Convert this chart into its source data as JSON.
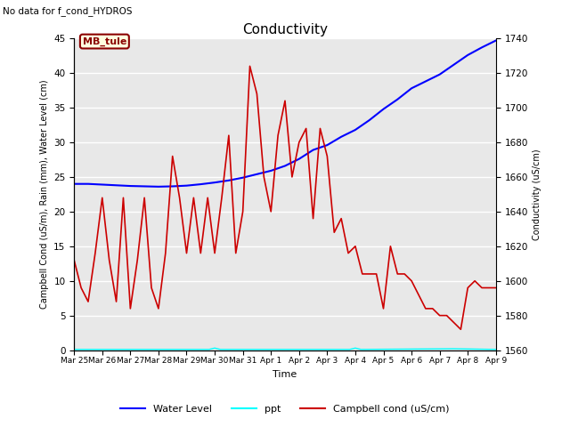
{
  "title": "Conductivity",
  "top_left_text": "No data for f_cond_HYDROS",
  "annotation_box": "MB_tule",
  "xlabel": "Time",
  "ylabel_left": "Campbell Cond (uS/m), Rain (mm), Water Level (cm)",
  "ylabel_right": "Conductivity (uS/cm)",
  "ylim_left": [
    0,
    45
  ],
  "ylim_right": [
    1560,
    1740
  ],
  "plot_bg_color": "#e8e8e8",
  "xtick_labels": [
    "Mar 25",
    "Mar 26",
    "Mar 27",
    "Mar 28",
    "Mar 29",
    "Mar 30",
    "Mar 31",
    "Apr 1",
    "Apr 2",
    "Apr 3",
    "Apr 4",
    "Apr 5",
    "Apr 6",
    "Apr 7",
    "Apr 8",
    "Apr 9"
  ],
  "water_level_color": "#0000ff",
  "ppt_color": "#00ffff",
  "campbell_color": "#cc0000",
  "water_level_x": [
    0,
    0.5,
    1.0,
    1.5,
    2.0,
    2.5,
    3.0,
    3.5,
    4.0,
    4.5,
    5.0,
    5.5,
    6.0,
    6.5,
    7.0,
    7.5,
    8.0,
    8.5,
    9.0,
    9.5,
    10.0,
    10.5,
    11.0,
    11.5,
    12.0,
    12.5,
    13.0,
    13.5,
    14.0,
    14.5,
    15.0
  ],
  "water_level_y": [
    24.0,
    24.0,
    23.9,
    23.8,
    23.7,
    23.65,
    23.6,
    23.65,
    23.75,
    23.95,
    24.2,
    24.5,
    24.9,
    25.4,
    25.9,
    26.6,
    27.6,
    28.9,
    29.6,
    30.8,
    31.8,
    33.2,
    34.8,
    36.2,
    37.8,
    38.8,
    39.8,
    41.2,
    42.6,
    43.7,
    44.7
  ],
  "campbell_x": [
    0,
    0.25,
    0.5,
    0.75,
    1.0,
    1.25,
    1.5,
    1.75,
    2.0,
    2.25,
    2.5,
    2.75,
    3.0,
    3.25,
    3.5,
    3.75,
    4.0,
    4.25,
    4.5,
    4.75,
    5.0,
    5.25,
    5.5,
    5.75,
    6.0,
    6.25,
    6.5,
    6.75,
    7.0,
    7.25,
    7.5,
    7.75,
    8.0,
    8.25,
    8.5,
    8.75,
    9.0,
    9.25,
    9.5,
    9.75,
    10.0,
    10.25,
    10.5,
    10.75,
    11.0,
    11.25,
    11.5,
    11.75,
    12.0,
    12.25,
    12.5,
    12.75,
    13.0,
    13.25,
    13.5,
    13.75,
    14.0,
    14.25,
    14.5,
    14.75,
    15.0
  ],
  "campbell_y": [
    13,
    9,
    7,
    14,
    22,
    13,
    7,
    22,
    6,
    13,
    22,
    9,
    6,
    14,
    28,
    22,
    14,
    22,
    14,
    22,
    14,
    22,
    31,
    14,
    20,
    41,
    37,
    25,
    20,
    31,
    36,
    25,
    30,
    32,
    19,
    32,
    28,
    17,
    19,
    14,
    15,
    11,
    11,
    11,
    6,
    15,
    11,
    11,
    10,
    8,
    6,
    6,
    5,
    5,
    4,
    3,
    9,
    10,
    9,
    9,
    9
  ],
  "ppt_x": [
    0,
    4.8,
    5.0,
    5.2,
    9.8,
    10.0,
    10.2,
    13.5,
    15.0
  ],
  "ppt_y": [
    0.1,
    0.1,
    0.3,
    0.1,
    0.1,
    0.3,
    0.1,
    0.2,
    0.1
  ],
  "legend_entries": [
    "Water Level",
    "ppt",
    "Campbell cond (uS/cm)"
  ],
  "legend_colors": [
    "#0000ff",
    "#00ffff",
    "#cc0000"
  ]
}
